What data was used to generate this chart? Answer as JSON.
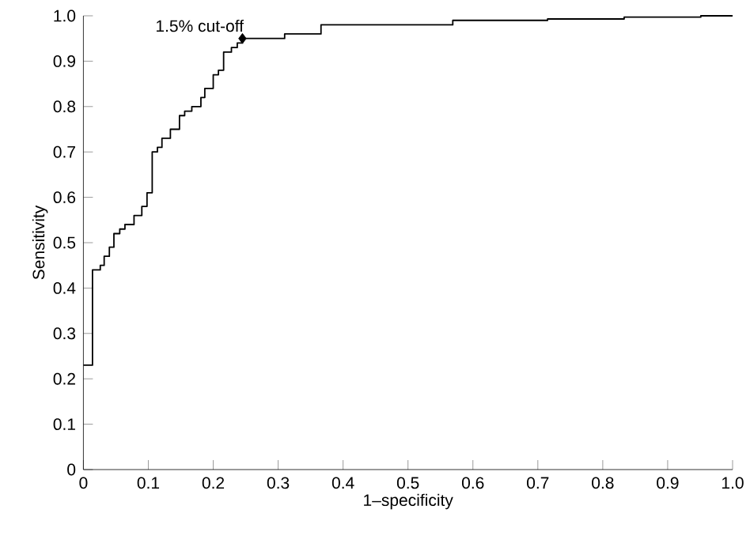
{
  "chart_data": {
    "type": "step",
    "xlabel": "1–specificity",
    "ylabel": "Sensitivity",
    "xlim": [
      0,
      1
    ],
    "ylim": [
      0,
      1
    ],
    "xticks": [
      0,
      0.1,
      0.2,
      0.3,
      0.4,
      0.5,
      0.6,
      0.7,
      0.8,
      0.9,
      {
        "value": 1,
        "label": "1.0"
      }
    ],
    "yticks": [
      0,
      0.1,
      0.2,
      0.3,
      0.4,
      0.5,
      0.6,
      0.7,
      0.8,
      0.9,
      {
        "value": 1,
        "label": "1.0"
      }
    ],
    "series": [
      {
        "color": "#000000",
        "x": [
          0,
          0.014,
          0.026,
          0.032,
          0.04,
          0.047,
          0.056,
          0.064,
          0.078,
          0.09,
          0.098,
          0.106,
          0.114,
          0.121,
          0.134,
          0.148,
          0.156,
          0.167,
          0.181,
          0.187,
          0.2,
          0.208,
          0.216,
          0.228,
          0.237,
          0.245,
          0.31,
          0.366,
          0.569,
          0.715,
          0.833,
          0.951,
          1.0
        ],
        "values": [
          0.23,
          0.44,
          0.45,
          0.47,
          0.49,
          0.52,
          0.53,
          0.54,
          0.56,
          0.58,
          0.61,
          0.7,
          0.71,
          0.73,
          0.75,
          0.78,
          0.79,
          0.8,
          0.82,
          0.84,
          0.87,
          0.88,
          0.92,
          0.93,
          0.94,
          0.95,
          0.96,
          0.98,
          0.99,
          0.993,
          0.997,
          1.0,
          1.0
        ]
      },
      {
        "type": "scatter",
        "color": "#000000",
        "marker": "diamond",
        "x": [
          0.245
        ],
        "values": [
          0.95
        ]
      }
    ],
    "annotations": [
      {
        "text": "1.5% cut-off",
        "x": 0.245,
        "y": 0.95
      }
    ]
  }
}
